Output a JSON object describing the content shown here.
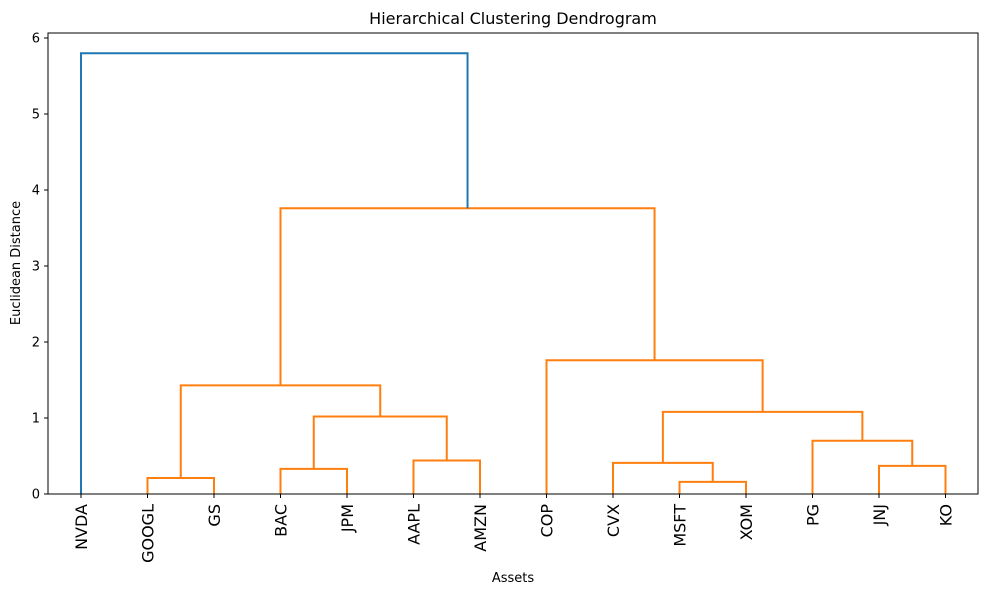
{
  "chart_data": {
    "type": "dendrogram",
    "title": "Hierarchical Clustering Dendrogram",
    "xlabel": "Assets",
    "ylabel": "Euclidean Distance",
    "ylim": [
      0,
      6
    ],
    "yticks": [
      "0",
      "1",
      "2",
      "3",
      "4",
      "5",
      "6"
    ],
    "grid": false,
    "leaves": [
      "NVDA",
      "GOOGL",
      "GS",
      "BAC",
      "JPM",
      "AAPL",
      "AMZN",
      "COP",
      "CVX",
      "MSFT",
      "XOM",
      "PG",
      "JNJ",
      "KO"
    ],
    "colors": {
      "root": "#1f77b4",
      "cluster": "#ff7f0e"
    },
    "merges": [
      {
        "left": "GOOGL",
        "right": "GS",
        "height": 0.21,
        "cluster": "C1",
        "color": "#ff7f0e"
      },
      {
        "left": "BAC",
        "right": "JPM",
        "height": 0.33,
        "cluster": "C2",
        "color": "#ff7f0e"
      },
      {
        "left": "AAPL",
        "right": "AMZN",
        "height": 0.44,
        "cluster": "C3",
        "color": "#ff7f0e"
      },
      {
        "left": "C2",
        "right": "C3",
        "height": 1.02,
        "cluster": "C4",
        "color": "#ff7f0e"
      },
      {
        "left": "C1",
        "right": "C4",
        "height": 1.43,
        "cluster": "C5",
        "color": "#ff7f0e"
      },
      {
        "left": "MSFT",
        "right": "XOM",
        "height": 0.16,
        "cluster": "C6",
        "color": "#ff7f0e"
      },
      {
        "left": "CVX",
        "right": "C6",
        "height": 0.41,
        "cluster": "C7",
        "color": "#ff7f0e"
      },
      {
        "left": "JNJ",
        "right": "KO",
        "height": 0.37,
        "cluster": "C8",
        "color": "#ff7f0e"
      },
      {
        "left": "PG",
        "right": "C8",
        "height": 0.7,
        "cluster": "C9",
        "color": "#ff7f0e"
      },
      {
        "left": "C7",
        "right": "C9",
        "height": 1.08,
        "cluster": "C10",
        "color": "#ff7f0e"
      },
      {
        "left": "COP",
        "right": "C10",
        "height": 1.76,
        "cluster": "C11",
        "color": "#ff7f0e"
      },
      {
        "left": "C5",
        "right": "C11",
        "height": 3.76,
        "cluster": "C12",
        "color": "#ff7f0e"
      },
      {
        "left": "NVDA",
        "right": "C12",
        "height": 5.8,
        "cluster": "C13",
        "color": "#1f77b4"
      }
    ]
  }
}
